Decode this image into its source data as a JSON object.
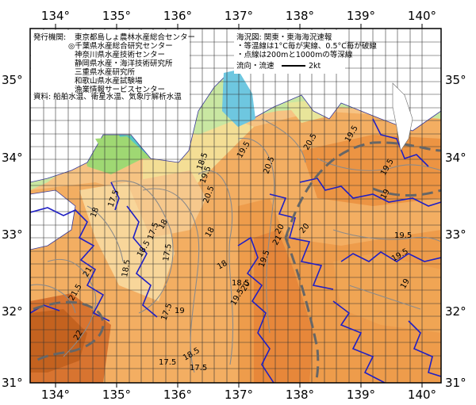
{
  "map": {
    "lon_ticks": [
      "134°",
      "135°",
      "136°",
      "137°",
      "138°",
      "139°",
      "140°"
    ],
    "lat_ticks": [
      "35°",
      "34°",
      "33°",
      "32°",
      "31°"
    ],
    "issuer_label": "発行機関:",
    "issuers": [
      "東京都島しょ農林水産総合センター",
      "◎千葉県水産総合研究センター",
      "神奈川県水産技術センター",
      "静岡県水産・海洋技術研究所",
      "三重県水産研究所",
      "和歌山県水産試験場",
      "漁業情報サービスセンター"
    ],
    "source": "資料: 船舶水温、衛星水温、気象庁解析水温",
    "sea_area": "海況図: 関東・東海海況速報",
    "notes": [
      "・等温線は1°C毎が実線、0.5°C毎が破線",
      "・点線は200mと1000mの等深線"
    ],
    "current_legend": "流向・流速",
    "current_scale": "2kt",
    "isotherm_labels": [
      {
        "t": "17.5"
      },
      {
        "t": "18"
      },
      {
        "t": "18.5"
      },
      {
        "t": "17.5"
      },
      {
        "t": "18.5"
      },
      {
        "t": "19.5"
      },
      {
        "t": "20.5"
      },
      {
        "t": "18"
      },
      {
        "t": "17.5"
      },
      {
        "t": "18"
      },
      {
        "t": "19.5"
      },
      {
        "t": "20.5"
      },
      {
        "t": "19.5"
      },
      {
        "t": "20"
      },
      {
        "t": "21"
      },
      {
        "t": "19.5"
      },
      {
        "t": "20"
      },
      {
        "t": "18.5"
      },
      {
        "t": "18"
      },
      {
        "t": "17.5"
      },
      {
        "t": "19"
      },
      {
        "t": "18.5"
      },
      {
        "t": "20"
      },
      {
        "t": "21.5"
      },
      {
        "t": "22"
      },
      {
        "t": "21"
      },
      {
        "t": "19.5"
      },
      {
        "t": "19.5"
      },
      {
        "t": "19"
      },
      {
        "t": "17.5"
      },
      {
        "t": "18.5"
      },
      {
        "t": "17.5"
      },
      {
        "t": "19.5"
      },
      {
        "t": "19"
      },
      {
        "t": "19.5"
      },
      {
        "t": "20.5"
      }
    ]
  }
}
